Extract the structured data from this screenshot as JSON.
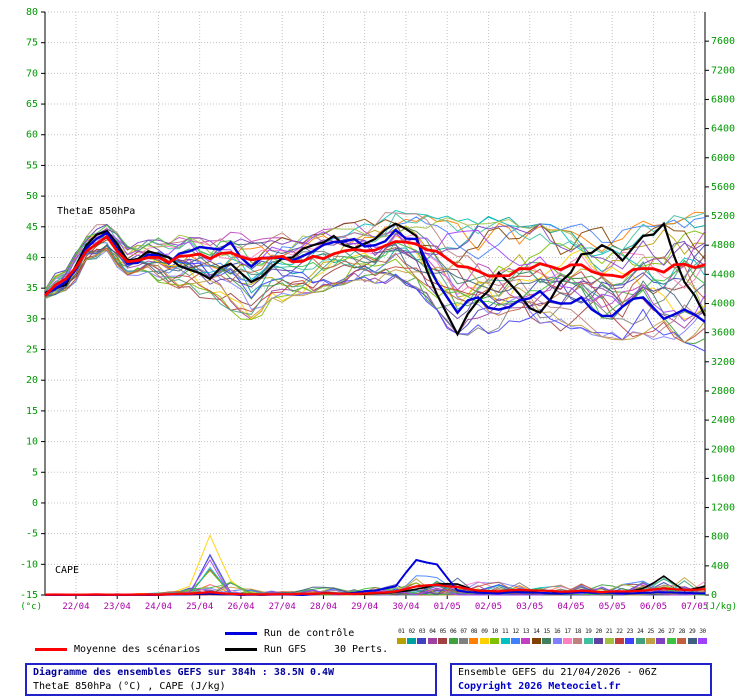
{
  "plot_labels": {
    "thetae": "ThetaE 850hPa",
    "cape": "CAPE"
  },
  "legend": {
    "mean": "Moyenne des scénarios",
    "control": "Run de contrôle",
    "gfs": "Run GFS",
    "perts": "30 Perts.",
    "member_numbers": [
      "01",
      "02",
      "03",
      "04",
      "05",
      "06",
      "07",
      "08",
      "09",
      "10",
      "11",
      "12",
      "13",
      "14",
      "15",
      "16",
      "17",
      "18",
      "19",
      "20",
      "21",
      "22",
      "23",
      "24",
      "25",
      "26",
      "27",
      "28",
      "29",
      "30"
    ]
  },
  "footer": {
    "title": "Diagramme des ensembles GEFS sur 384h : 38.5N 0.4W",
    "subtitle": "ThetaE 850hPa (°C) , CAPE (J/kg)",
    "run": "Ensemble GEFS du 21/04/2026 - 06Z",
    "copyright": "Copyright 2026 Meteociel.fr"
  },
  "colors": {
    "mean": "#ff0000",
    "control": "#0000dd",
    "gfs": "#000000",
    "grid": "#c4c4c4",
    "axis_label": "#009900",
    "date_label": "#aa00aa",
    "members": [
      "#b8a000",
      "#00a0a0",
      "#4040c0",
      "#a040a0",
      "#a04040",
      "#40a040",
      "#808080",
      "#ff8000",
      "#ffd000",
      "#80c000",
      "#00c0c0",
      "#4080ff",
      "#c040c0",
      "#804000",
      "#408060",
      "#8080ff",
      "#ff80c0",
      "#c08080",
      "#40c0a0",
      "#6040a0",
      "#a0c040",
      "#c04040",
      "#4040ff",
      "#40a080",
      "#c0a040",
      "#8040c0",
      "#40c040",
      "#c06040",
      "#406080",
      "#a040ff"
    ]
  },
  "chart_data": {
    "type": "line",
    "title": "Diagramme des ensembles GEFS sur 384h : 38.5N 0.4W",
    "subtitle": "ThetaE 850hPa (°C) , CAPE (J/kg)",
    "run": "Ensemble GEFS du 21/04/2026 - 06Z",
    "members": 30,
    "time_step_hours": 12,
    "x_axis": {
      "labels": [
        "22/04",
        "23/04",
        "24/04",
        "25/04",
        "26/04",
        "27/04",
        "28/04",
        "29/04",
        "30/04",
        "01/05",
        "02/05",
        "03/05",
        "04/05",
        "05/05",
        "06/05",
        "07/05"
      ],
      "label_offset_hours": 18,
      "label_interval_hours": 24,
      "total_hours": 384
    },
    "y_left": {
      "label": "(°c)",
      "min": -15,
      "max": 80,
      "step": 5
    },
    "y_right": {
      "label": "(J/kg)",
      "min": 0,
      "max": 8000,
      "step": 400,
      "max_label": 7600
    },
    "grid": true,
    "thetae_850hPa_C": {
      "mean": [
        33.8,
        36.5,
        41.0,
        43.4,
        39.3,
        40.0,
        39.2,
        40.3,
        39.8,
        40.8,
        39.6,
        39.9,
        39.3,
        40.2,
        40.6,
        41.3,
        41.2,
        42.6,
        42.2,
        41.0,
        38.6,
        37.8,
        37.0,
        38.2,
        39.0,
        38.0,
        38.8,
        37.2,
        36.8,
        38.2,
        37.6,
        38.9,
        38.8
      ],
      "control": [
        34.0,
        36.0,
        41.5,
        44.0,
        39.0,
        40.5,
        39.0,
        41.0,
        41.5,
        42.5,
        38.5,
        40.0,
        39.5,
        41.0,
        42.5,
        43.0,
        42.0,
        44.5,
        43.0,
        36.0,
        31.0,
        33.5,
        31.5,
        33.0,
        34.5,
        32.5,
        33.5,
        30.5,
        32.0,
        33.5,
        30.0,
        31.5,
        29.5
      ],
      "gfs": [
        34.2,
        35.5,
        42.0,
        44.3,
        39.5,
        41.0,
        40.0,
        38.0,
        36.5,
        39.0,
        36.0,
        38.5,
        40.0,
        42.0,
        43.5,
        41.5,
        43.0,
        45.5,
        43.5,
        34.0,
        27.5,
        33.0,
        37.5,
        34.0,
        31.0,
        36.0,
        40.5,
        42.0,
        39.5,
        43.5,
        45.5,
        36.0,
        30.5
      ],
      "ensemble_min": [
        33.2,
        34.5,
        39.5,
        41.0,
        37.0,
        37.5,
        35.5,
        35.0,
        33.0,
        31.0,
        29.5,
        33.0,
        33.5,
        34.0,
        35.0,
        36.0,
        35.5,
        36.5,
        34.5,
        31.0,
        27.0,
        28.0,
        27.5,
        29.0,
        28.5,
        27.5,
        28.0,
        26.5,
        26.0,
        27.0,
        26.5,
        25.5,
        24.0
      ],
      "ensemble_max": [
        34.8,
        38.0,
        43.5,
        45.5,
        42.0,
        43.0,
        42.5,
        43.5,
        43.0,
        44.5,
        43.0,
        43.5,
        43.0,
        44.0,
        45.0,
        46.0,
        45.5,
        48.0,
        47.5,
        47.0,
        46.5,
        46.0,
        46.5,
        45.5,
        46.0,
        45.0,
        46.0,
        45.5,
        45.0,
        46.5,
        46.0,
        47.0,
        48.0
      ]
    },
    "cape_J_kg": {
      "mean": [
        5,
        5,
        5,
        5,
        5,
        8,
        10,
        15,
        40,
        15,
        10,
        10,
        12,
        15,
        20,
        15,
        30,
        50,
        120,
        140,
        110,
        60,
        50,
        70,
        60,
        45,
        60,
        40,
        50,
        60,
        90,
        70,
        80
      ],
      "control": [
        0,
        0,
        0,
        0,
        0,
        0,
        5,
        10,
        20,
        10,
        5,
        5,
        5,
        10,
        20,
        30,
        60,
        120,
        480,
        420,
        60,
        30,
        20,
        40,
        30,
        20,
        40,
        30,
        20,
        30,
        40,
        30,
        20
      ],
      "gfs": [
        0,
        0,
        0,
        0,
        0,
        0,
        5,
        10,
        15,
        10,
        5,
        5,
        10,
        15,
        25,
        15,
        20,
        40,
        80,
        150,
        150,
        40,
        30,
        40,
        60,
        30,
        40,
        30,
        40,
        90,
        260,
        60,
        120
      ],
      "ensemble_member_max": [
        10,
        10,
        10,
        15,
        20,
        30,
        60,
        150,
        820,
        260,
        120,
        90,
        80,
        180,
        150,
        120,
        150,
        300,
        380,
        350,
        350,
        280,
        300,
        250,
        300,
        220,
        280,
        200,
        260,
        300,
        330,
        350,
        300
      ]
    }
  }
}
